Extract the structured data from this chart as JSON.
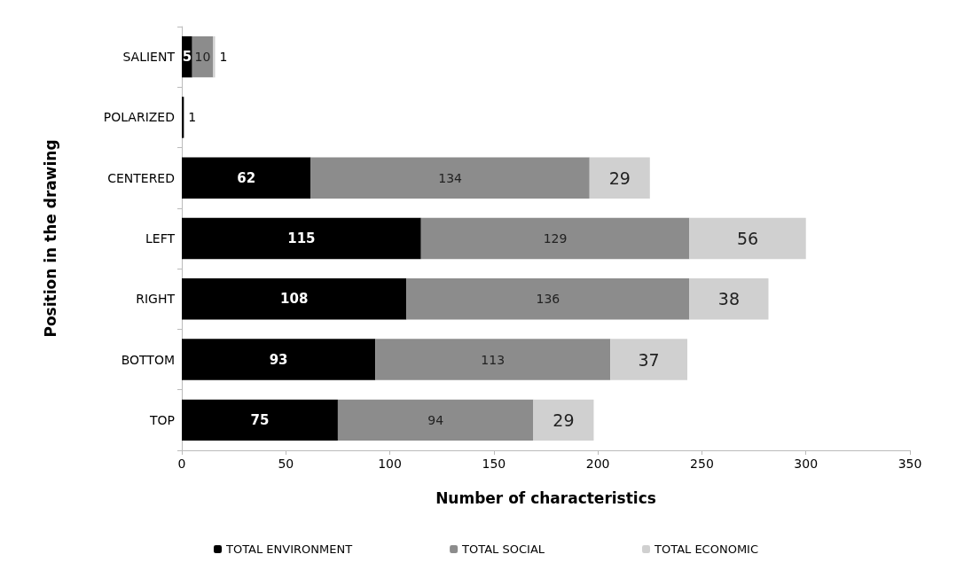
{
  "chart_data": {
    "type": "bar",
    "orientation": "horizontal",
    "stacked": true,
    "xlabel": "Number of characteristics",
    "ylabel": "Position in the drawing",
    "categories": [
      "SALIENT",
      "POLARIZED",
      "CENTERED",
      "LEFT",
      "RIGHT",
      "BOTTOM",
      "TOP"
    ],
    "series": [
      {
        "name": "TOTAL ENVIRONMENT",
        "color": "#000000",
        "values": [
          5,
          1,
          62,
          115,
          108,
          93,
          75
        ]
      },
      {
        "name": "TOTAL SOCIAL",
        "color": "#8c8c8c",
        "values": [
          10,
          null,
          134,
          129,
          136,
          113,
          94
        ]
      },
      {
        "name": "TOTAL ECONOMIC",
        "color": "#d0d0d0",
        "values": [
          1,
          null,
          29,
          56,
          38,
          37,
          29
        ]
      }
    ],
    "xlim": [
      0,
      350
    ],
    "xticks": [
      0,
      50,
      100,
      150,
      200,
      250,
      300,
      350
    ],
    "data_labels": true,
    "grid": false,
    "legend": "bottom"
  }
}
